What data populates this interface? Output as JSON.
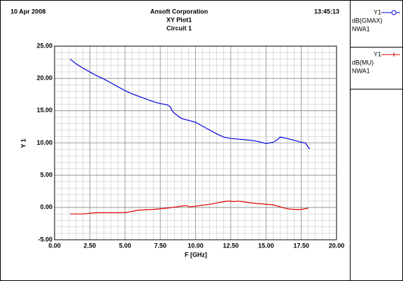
{
  "chart_data": {
    "type": "line",
    "date": "10 Apr 2008",
    "title": "Ansoft Corporation",
    "subtitle": "XY Plot1",
    "circuit": "Circuit 1",
    "time": "13:45:13",
    "x_label": "F [GHz]",
    "y_label": "Y 1",
    "xlim": [
      0,
      20
    ],
    "ylim": [
      -5,
      25
    ],
    "xticks": [
      {
        "value": 0,
        "label": "0.00"
      },
      {
        "value": 2.5,
        "label": "2.50"
      },
      {
        "value": 5,
        "label": "5.00"
      },
      {
        "value": 7.5,
        "label": "7.50"
      },
      {
        "value": 10,
        "label": "10.00"
      },
      {
        "value": 12.5,
        "label": "12.50"
      },
      {
        "value": 15,
        "label": "15.00"
      },
      {
        "value": 17.5,
        "label": "17.50"
      },
      {
        "value": 20,
        "label": "20.00"
      }
    ],
    "yticks": [
      {
        "value": -5,
        "label": "-5.00"
      },
      {
        "value": 0,
        "label": "0.00"
      },
      {
        "value": 5,
        "label": "5.00"
      },
      {
        "value": 10,
        "label": "10.00"
      },
      {
        "value": 15,
        "label": "15.00"
      },
      {
        "value": 20,
        "label": "20.00"
      },
      {
        "value": 25,
        "label": "25.00"
      }
    ],
    "grid": true,
    "minor_grid": true,
    "series": [
      {
        "name": "dB(GMAX)",
        "trace_axis": "Y1",
        "source": "NWA1",
        "color": "#0000e0",
        "marker": "circle",
        "x": [
          1.1,
          1.5,
          2,
          2.5,
          3,
          3.5,
          4,
          4.5,
          5,
          5.5,
          6,
          6.5,
          7,
          7.5,
          8,
          8.2,
          8.4,
          8.8,
          9,
          9.5,
          10,
          10.5,
          11,
          11.5,
          12,
          12.5,
          13,
          13.5,
          14,
          14.5,
          15,
          15.5,
          15.8,
          16,
          16.5,
          17,
          17.5,
          17.8,
          18,
          18.1
        ],
        "values": [
          23.0,
          22.3,
          21.6,
          21.0,
          20.4,
          19.9,
          19.3,
          18.7,
          18.1,
          17.6,
          17.2,
          16.8,
          16.4,
          16.1,
          15.9,
          15.6,
          14.8,
          14.1,
          13.8,
          13.5,
          13.2,
          12.6,
          12.0,
          11.4,
          10.9,
          10.7,
          10.6,
          10.5,
          10.4,
          10.2,
          9.9,
          10.1,
          10.5,
          10.9,
          10.7,
          10.4,
          10.1,
          10.0,
          9.3,
          9.1
        ]
      },
      {
        "name": "dB(MU)",
        "trace_axis": "Y1",
        "source": "NWA1",
        "color": "#e00000",
        "marker": "cross",
        "x": [
          1.1,
          2,
          3,
          4,
          5,
          5.5,
          6,
          7,
          8,
          9,
          9.3,
          9.6,
          10,
          11,
          12,
          12.3,
          12.8,
          13,
          14,
          15,
          15.5,
          16,
          16.5,
          17,
          17.5,
          18
        ],
        "values": [
          -1.0,
          -1.0,
          -0.8,
          -0.8,
          -0.8,
          -0.6,
          -0.4,
          -0.3,
          -0.1,
          0.2,
          0.3,
          0.1,
          0.2,
          0.5,
          0.9,
          1.0,
          0.9,
          1.0,
          0.7,
          0.5,
          0.4,
          0.1,
          -0.2,
          -0.3,
          -0.3,
          -0.1
        ]
      }
    ]
  }
}
